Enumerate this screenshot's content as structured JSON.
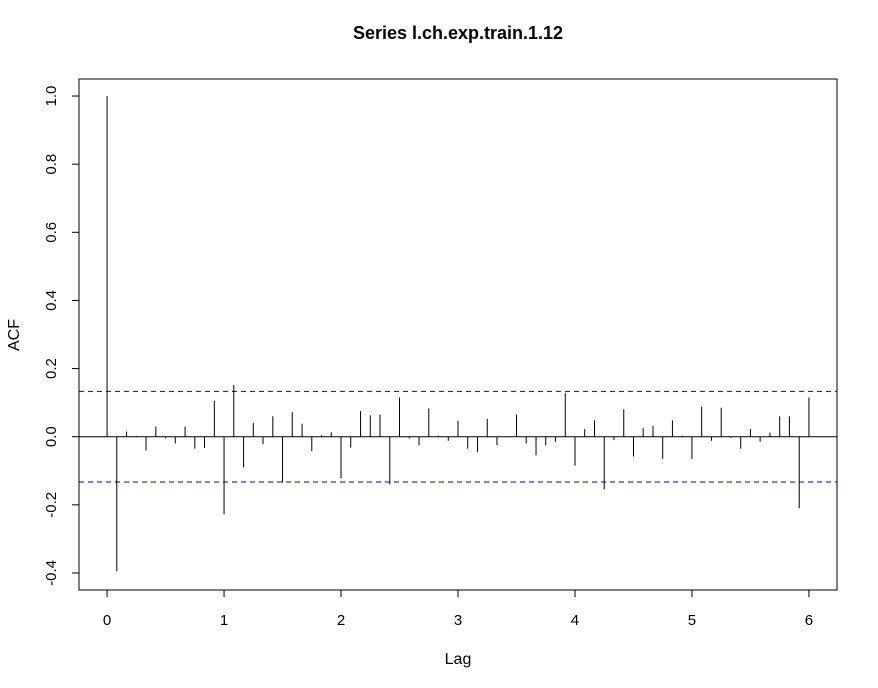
{
  "chart_data": {
    "type": "bar",
    "subtype": "acf-correlogram",
    "title": "Series  l.ch.exp.train.1.12",
    "xlabel": "Lag",
    "ylabel": "ACF",
    "xlim": [
      -0.24,
      6.24
    ],
    "ylim": [
      -0.45,
      1.05
    ],
    "x_ticks": [
      0,
      1,
      2,
      3,
      4,
      5,
      6
    ],
    "x_tick_labels": [
      "0",
      "1",
      "2",
      "3",
      "4",
      "5",
      "6"
    ],
    "y_ticks": [
      -0.4,
      -0.2,
      0.0,
      0.2,
      0.4,
      0.6,
      0.8,
      1.0
    ],
    "y_tick_labels": [
      "-0.4",
      "-0.2",
      "0.0",
      "0.2",
      "0.4",
      "0.6",
      "0.8",
      "1.0"
    ],
    "confidence_bound": 0.133,
    "confidence_color": "#0000cd",
    "bar_color": "#000000",
    "grid": false,
    "legend": "none",
    "lag_step": 0.0833,
    "lags": [
      0,
      0.083,
      0.167,
      0.25,
      0.333,
      0.417,
      0.5,
      0.583,
      0.667,
      0.75,
      0.833,
      0.917,
      1.0,
      1.083,
      1.167,
      1.25,
      1.333,
      1.417,
      1.5,
      1.583,
      1.667,
      1.75,
      1.833,
      1.917,
      2.0,
      2.083,
      2.167,
      2.25,
      2.333,
      2.417,
      2.5,
      2.583,
      2.667,
      2.75,
      2.833,
      2.917,
      3.0,
      3.083,
      3.167,
      3.25,
      3.333,
      3.417,
      3.5,
      3.583,
      3.667,
      3.75,
      3.833,
      3.917,
      4.0,
      4.083,
      4.167,
      4.25,
      4.333,
      4.417,
      4.5,
      4.583,
      4.667,
      4.75,
      4.833,
      4.917,
      5.0,
      5.083,
      5.167,
      5.25,
      5.333,
      5.417,
      5.5,
      5.583,
      5.667,
      5.75,
      5.833,
      5.917,
      6.0
    ],
    "values": [
      1.0,
      -0.395,
      0.015,
      0.002,
      -0.04,
      0.03,
      -0.005,
      -0.02,
      0.03,
      -0.035,
      -0.033,
      0.105,
      -0.228,
      0.152,
      -0.09,
      0.04,
      -0.022,
      0.06,
      -0.135,
      0.072,
      0.038,
      -0.042,
      0.005,
      0.013,
      -0.122,
      -0.032,
      0.075,
      0.063,
      0.065,
      -0.14,
      0.115,
      -0.005,
      -0.025,
      0.083,
      0.003,
      -0.012,
      0.047,
      -0.035,
      -0.045,
      0.052,
      -0.025,
      0.0,
      0.065,
      -0.02,
      -0.055,
      -0.025,
      -0.015,
      0.128,
      -0.085,
      0.022,
      0.048,
      -0.155,
      -0.01,
      0.08,
      -0.058,
      0.025,
      0.032,
      -0.065,
      0.048,
      0.003,
      -0.065,
      0.088,
      -0.012,
      0.085,
      -0.003,
      -0.035,
      0.023,
      -0.015,
      0.012,
      0.06,
      0.06,
      -0.21,
      0.115
    ]
  }
}
